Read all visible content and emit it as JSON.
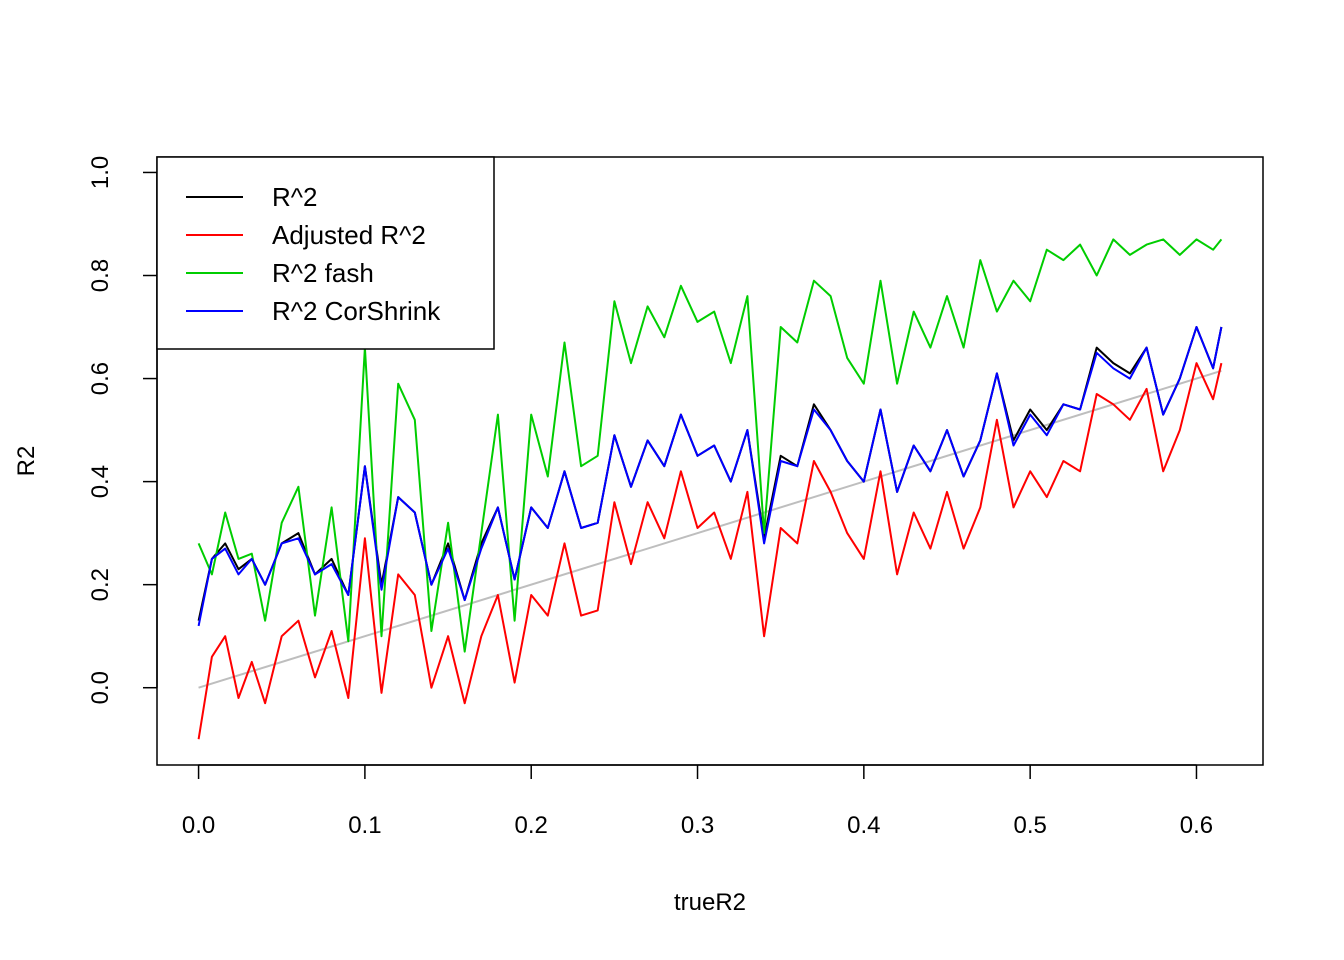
{
  "chart_data": {
    "type": "line",
    "title": "",
    "xlabel": "trueR2",
    "ylabel": "R2",
    "xlim": [
      -0.025,
      0.64
    ],
    "ylim": [
      -0.15,
      1.03
    ],
    "xticks": [
      0.0,
      0.1,
      0.2,
      0.3,
      0.4,
      0.5,
      0.6
    ],
    "xtick_labels": [
      "0.0",
      "0.1",
      "0.2",
      "0.3",
      "0.4",
      "0.5",
      "0.6"
    ],
    "yticks": [
      0.0,
      0.2,
      0.4,
      0.6,
      0.8,
      1.0
    ],
    "ytick_labels": [
      "0.0",
      "0.2",
      "0.4",
      "0.6",
      "0.8",
      "1.0"
    ],
    "grid": false,
    "legend_position": "top-left",
    "x": [
      0.0,
      0.008,
      0.016,
      0.024,
      0.032,
      0.04,
      0.05,
      0.06,
      0.07,
      0.08,
      0.09,
      0.1,
      0.11,
      0.12,
      0.13,
      0.14,
      0.15,
      0.16,
      0.17,
      0.18,
      0.19,
      0.2,
      0.21,
      0.22,
      0.23,
      0.24,
      0.25,
      0.26,
      0.27,
      0.28,
      0.29,
      0.3,
      0.31,
      0.32,
      0.33,
      0.34,
      0.35,
      0.36,
      0.37,
      0.38,
      0.39,
      0.4,
      0.41,
      0.42,
      0.43,
      0.44,
      0.45,
      0.46,
      0.47,
      0.48,
      0.49,
      0.5,
      0.51,
      0.52,
      0.53,
      0.54,
      0.55,
      0.56,
      0.57,
      0.58,
      0.59,
      0.6,
      0.61,
      0.615
    ],
    "series": [
      {
        "name": "R^2",
        "color": "#000000",
        "values": [
          0.13,
          0.25,
          0.28,
          0.23,
          0.25,
          0.2,
          0.28,
          0.3,
          0.22,
          0.25,
          0.18,
          0.43,
          0.2,
          0.37,
          0.34,
          0.2,
          0.28,
          0.17,
          0.28,
          0.35,
          0.21,
          0.35,
          0.31,
          0.42,
          0.31,
          0.32,
          0.49,
          0.39,
          0.48,
          0.43,
          0.53,
          0.45,
          0.47,
          0.4,
          0.5,
          0.29,
          0.45,
          0.43,
          0.55,
          0.5,
          0.44,
          0.4,
          0.54,
          0.38,
          0.47,
          0.42,
          0.5,
          0.41,
          0.48,
          0.61,
          0.48,
          0.54,
          0.5,
          0.55,
          0.54,
          0.66,
          0.63,
          0.61,
          0.66,
          0.53,
          0.6,
          0.7,
          0.62,
          0.7
        ]
      },
      {
        "name": "Adjusted R^2",
        "color": "#ff0000",
        "values": [
          -0.1,
          0.06,
          0.1,
          -0.02,
          0.05,
          -0.03,
          0.1,
          0.13,
          0.02,
          0.11,
          -0.02,
          0.29,
          -0.01,
          0.22,
          0.18,
          0.0,
          0.1,
          -0.03,
          0.1,
          0.18,
          0.01,
          0.18,
          0.14,
          0.28,
          0.14,
          0.15,
          0.36,
          0.24,
          0.36,
          0.29,
          0.42,
          0.31,
          0.34,
          0.25,
          0.38,
          0.1,
          0.31,
          0.28,
          0.44,
          0.38,
          0.3,
          0.25,
          0.42,
          0.22,
          0.34,
          0.27,
          0.38,
          0.27,
          0.35,
          0.52,
          0.35,
          0.42,
          0.37,
          0.44,
          0.42,
          0.57,
          0.55,
          0.52,
          0.58,
          0.42,
          0.5,
          0.63,
          0.56,
          0.63
        ]
      },
      {
        "name": "R^2 fash",
        "color": "#00cd00",
        "values": [
          0.28,
          0.22,
          0.34,
          0.25,
          0.26,
          0.13,
          0.32,
          0.39,
          0.14,
          0.35,
          0.09,
          0.66,
          0.1,
          0.59,
          0.52,
          0.11,
          0.32,
          0.07,
          0.3,
          0.53,
          0.13,
          0.53,
          0.41,
          0.67,
          0.43,
          0.45,
          0.75,
          0.63,
          0.74,
          0.68,
          0.78,
          0.71,
          0.73,
          0.63,
          0.76,
          0.3,
          0.7,
          0.67,
          0.79,
          0.76,
          0.64,
          0.59,
          0.79,
          0.59,
          0.73,
          0.66,
          0.76,
          0.66,
          0.83,
          0.73,
          0.79,
          0.75,
          0.85,
          0.83,
          0.86,
          0.8,
          0.87,
          0.84,
          0.86,
          0.87,
          0.84,
          0.87,
          0.85,
          0.87
        ]
      },
      {
        "name": "R^2 CorShrink",
        "color": "#0000ff",
        "values": [
          0.12,
          0.25,
          0.27,
          0.22,
          0.25,
          0.2,
          0.28,
          0.29,
          0.22,
          0.24,
          0.18,
          0.43,
          0.19,
          0.37,
          0.34,
          0.2,
          0.27,
          0.17,
          0.27,
          0.35,
          0.21,
          0.35,
          0.31,
          0.42,
          0.31,
          0.32,
          0.49,
          0.39,
          0.48,
          0.43,
          0.53,
          0.45,
          0.47,
          0.4,
          0.5,
          0.28,
          0.44,
          0.43,
          0.54,
          0.5,
          0.44,
          0.4,
          0.54,
          0.38,
          0.47,
          0.42,
          0.5,
          0.41,
          0.48,
          0.61,
          0.47,
          0.53,
          0.49,
          0.55,
          0.54,
          0.65,
          0.62,
          0.6,
          0.66,
          0.53,
          0.6,
          0.7,
          0.62,
          0.7
        ]
      }
    ],
    "reference_line": {
      "color": "#bebebe",
      "points": [
        [
          0.0,
          0.0
        ],
        [
          0.615,
          0.615
        ]
      ]
    }
  }
}
